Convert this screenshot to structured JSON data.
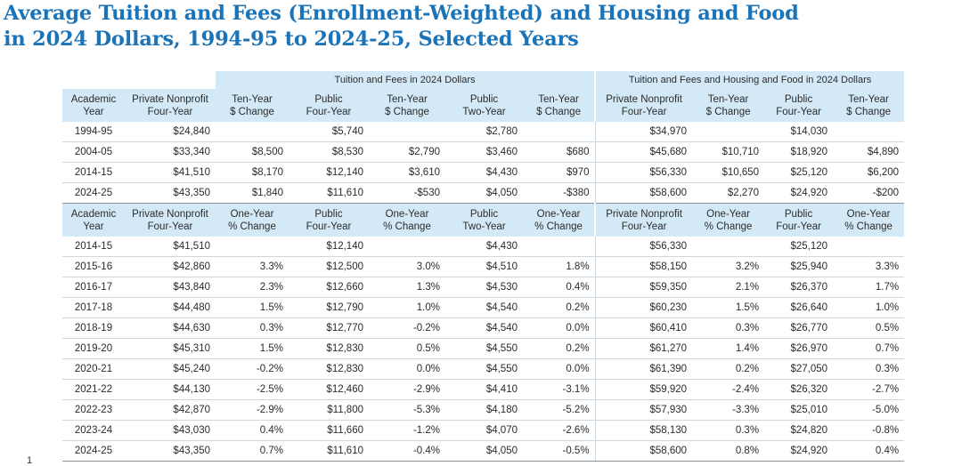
{
  "title": {
    "line1": "Average Tuition and Fees (Enrollment-Weighted) and Housing and Food",
    "line2": "in 2024 Dollars, 1994-95 to 2024-25, Selected Years"
  },
  "groups": {
    "tuition": "Tuition and Fees in 2024 Dollars",
    "tuition_housing": "Tuition and Fees and Housing and Food in 2024 Dollars"
  },
  "header_ten_year": [
    [
      "Academic",
      "Year"
    ],
    [
      "Private Nonprofit",
      "Four-Year"
    ],
    [
      "Ten-Year",
      "$ Change"
    ],
    [
      "Public",
      "Four-Year"
    ],
    [
      "Ten-Year",
      "$ Change"
    ],
    [
      "Public",
      "Two-Year"
    ],
    [
      "Ten-Year",
      "$ Change"
    ],
    [
      "Private Nonprofit",
      "Four-Year"
    ],
    [
      "Ten-Year",
      "$ Change"
    ],
    [
      "Public",
      "Four-Year"
    ],
    [
      "Ten-Year",
      "$ Change"
    ]
  ],
  "rows_ten_year": [
    [
      "1994-95",
      "$24,840",
      "",
      "$5,740",
      "",
      "$2,780",
      "",
      "$34,970",
      "",
      "$14,030",
      ""
    ],
    [
      "2004-05",
      "$33,340",
      "$8,500",
      "$8,530",
      "$2,790",
      "$3,460",
      "$680",
      "$45,680",
      "$10,710",
      "$18,920",
      "$4,890"
    ],
    [
      "2014-15",
      "$41,510",
      "$8,170",
      "$12,140",
      "$3,610",
      "$4,430",
      "$970",
      "$56,330",
      "$10,650",
      "$25,120",
      "$6,200"
    ],
    [
      "2024-25",
      "$43,350",
      "$1,840",
      "$11,610",
      "-$530",
      "$4,050",
      "-$380",
      "$58,600",
      "$2,270",
      "$24,920",
      "-$200"
    ]
  ],
  "header_one_year": [
    [
      "Academic",
      "Year"
    ],
    [
      "Private Nonprofit",
      "Four-Year"
    ],
    [
      "One-Year",
      "% Change"
    ],
    [
      "Public",
      "Four-Year"
    ],
    [
      "One-Year",
      "% Change"
    ],
    [
      "Public",
      "Two-Year"
    ],
    [
      "One-Year",
      "% Change"
    ],
    [
      "Private Nonprofit",
      "Four-Year"
    ],
    [
      "One-Year",
      "% Change"
    ],
    [
      "Public",
      "Four-Year"
    ],
    [
      "One-Year",
      "% Change"
    ]
  ],
  "rows_one_year": [
    [
      "2014-15",
      "$41,510",
      "",
      "$12,140",
      "",
      "$4,430",
      "",
      "$56,330",
      "",
      "$25,120",
      ""
    ],
    [
      "2015-16",
      "$42,860",
      "3.3%",
      "$12,500",
      "3.0%",
      "$4,510",
      "1.8%",
      "$58,150",
      "3.2%",
      "$25,940",
      "3.3%"
    ],
    [
      "2016-17",
      "$43,840",
      "2.3%",
      "$12,660",
      "1.3%",
      "$4,530",
      "0.4%",
      "$59,350",
      "2.1%",
      "$26,370",
      "1.7%"
    ],
    [
      "2017-18",
      "$44,480",
      "1.5%",
      "$12,790",
      "1.0%",
      "$4,540",
      "0.2%",
      "$60,230",
      "1.5%",
      "$26,640",
      "1.0%"
    ],
    [
      "2018-19",
      "$44,630",
      "0.3%",
      "$12,770",
      "-0.2%",
      "$4,540",
      "0.0%",
      "$60,410",
      "0.3%",
      "$26,770",
      "0.5%"
    ],
    [
      "2019-20",
      "$45,310",
      "1.5%",
      "$12,830",
      "0.5%",
      "$4,550",
      "0.2%",
      "$61,270",
      "1.4%",
      "$26,970",
      "0.7%"
    ],
    [
      "2020-21",
      "$45,240",
      "-0.2%",
      "$12,830",
      "0.0%",
      "$4,550",
      "0.0%",
      "$61,390",
      "0.2%",
      "$27,050",
      "0.3%"
    ],
    [
      "2021-22",
      "$44,130",
      "-2.5%",
      "$12,460",
      "-2.9%",
      "$4,410",
      "-3.1%",
      "$59,920",
      "-2.4%",
      "$26,320",
      "-2.7%"
    ],
    [
      "2022-23",
      "$42,870",
      "-2.9%",
      "$11,800",
      "-5.3%",
      "$4,180",
      "-5.2%",
      "$57,930",
      "-3.3%",
      "$25,010",
      "-5.0%"
    ],
    [
      "2023-24",
      "$43,030",
      "0.4%",
      "$11,660",
      "-1.2%",
      "$4,070",
      "-2.6%",
      "$58,130",
      "0.3%",
      "$24,820",
      "-0.8%"
    ],
    [
      "2024-25",
      "$43,350",
      "0.7%",
      "$11,610",
      "-0.4%",
      "$4,050",
      "-0.5%",
      "$58,600",
      "0.8%",
      "$24,920",
      "0.4%"
    ]
  ],
  "footer_mark": "1",
  "colors": {
    "title": "#1b73b8",
    "header_bg": "#d4e9f7",
    "row_rule": "#cfd8df"
  }
}
